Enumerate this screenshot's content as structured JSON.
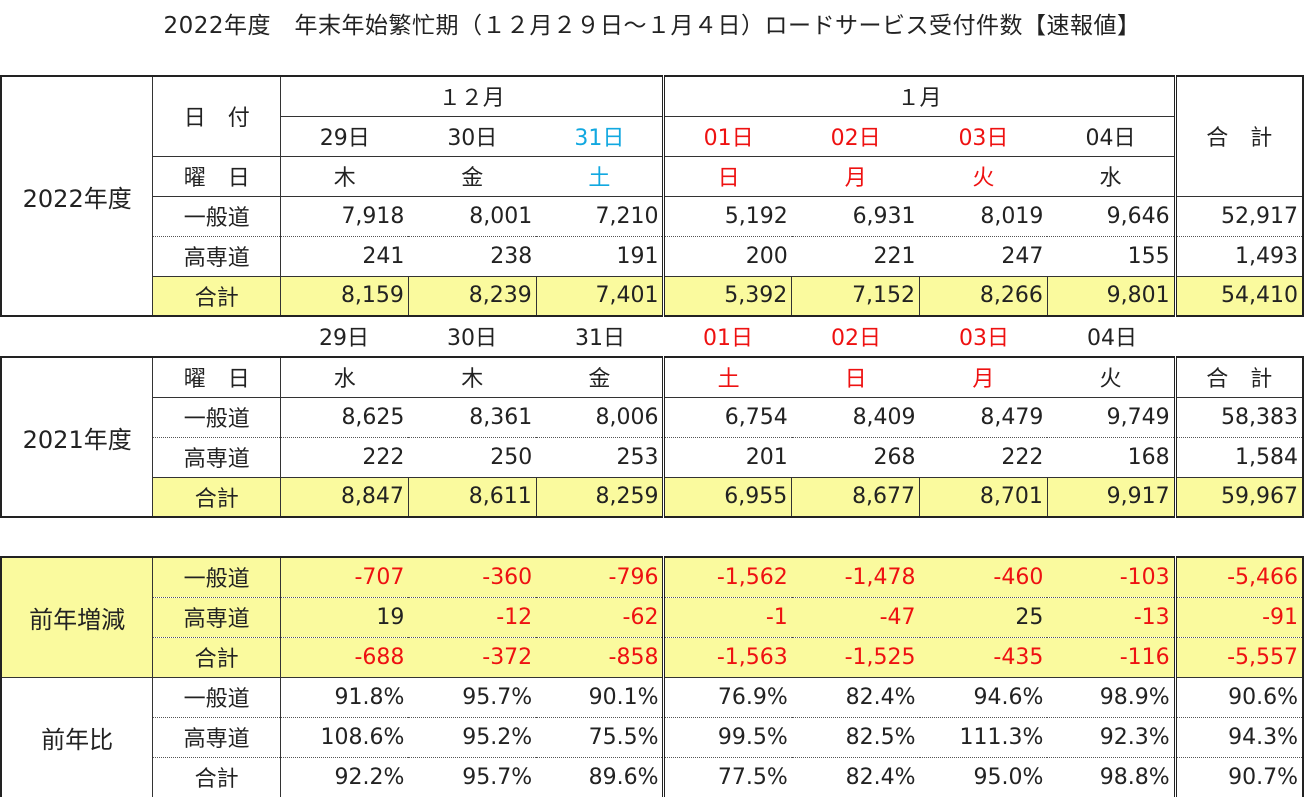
{
  "title": "2022年度　年末年始繁忙期（１２月２９日～１月４日）ロードサービス受付件数【速報値】",
  "labels": {
    "date": "日　付",
    "weekday": "曜　日",
    "general": "一般道",
    "expressway": "高専道",
    "subtotal": "合計",
    "total": "合　計",
    "dec": "１２月",
    "jan": "１月"
  },
  "fy2022": {
    "label": "2022年度",
    "dates": [
      "29日",
      "30日",
      "31日",
      "01日",
      "02日",
      "03日",
      "04日"
    ],
    "weekdays": [
      "木",
      "金",
      "土",
      "日",
      "月",
      "火",
      "水"
    ],
    "general": [
      "7,918",
      "8,001",
      "7,210",
      "5,192",
      "6,931",
      "8,019",
      "9,646",
      "52,917"
    ],
    "expressway": [
      "241",
      "238",
      "191",
      "200",
      "221",
      "247",
      "155",
      "1,493"
    ],
    "total": [
      "8,159",
      "8,239",
      "7,401",
      "5,392",
      "7,152",
      "8,266",
      "9,801",
      "54,410"
    ]
  },
  "fy2021": {
    "label": "2021年度",
    "dates": [
      "29日",
      "30日",
      "31日",
      "01日",
      "02日",
      "03日",
      "04日"
    ],
    "weekdays": [
      "水",
      "木",
      "金",
      "土",
      "日",
      "月",
      "火"
    ],
    "general": [
      "8,625",
      "8,361",
      "8,006",
      "6,754",
      "8,409",
      "8,479",
      "9,749",
      "58,383"
    ],
    "expressway": [
      "222",
      "250",
      "253",
      "201",
      "268",
      "222",
      "168",
      "1,584"
    ],
    "total": [
      "8,847",
      "8,611",
      "8,259",
      "6,955",
      "8,677",
      "8,701",
      "9,917",
      "59,967"
    ]
  },
  "diff": {
    "label": "前年増減",
    "general": [
      "-707",
      "-360",
      "-796",
      "-1,562",
      "-1,478",
      "-460",
      "-103",
      "-5,466"
    ],
    "expressway": [
      "19",
      "-12",
      "-62",
      "-1",
      "-47",
      "25",
      "-13",
      "-91"
    ],
    "total": [
      "-688",
      "-372",
      "-858",
      "-1,563",
      "-1,525",
      "-435",
      "-116",
      "-5,557"
    ]
  },
  "ratio": {
    "label": "前年比",
    "general": [
      "91.8%",
      "95.7%",
      "90.1%",
      "76.9%",
      "82.4%",
      "94.6%",
      "98.9%",
      "90.6%"
    ],
    "expressway": [
      "108.6%",
      "95.2%",
      "75.5%",
      "99.5%",
      "82.5%",
      "111.3%",
      "92.3%",
      "94.3%"
    ],
    "total": [
      "92.2%",
      "95.7%",
      "89.6%",
      "77.5%",
      "82.4%",
      "95.0%",
      "98.8%",
      "90.7%"
    ]
  },
  "colors": {
    "highlight": "#fafa9e",
    "holiday_red": "#ee1111",
    "saturday_blue": "#11a8e0"
  }
}
